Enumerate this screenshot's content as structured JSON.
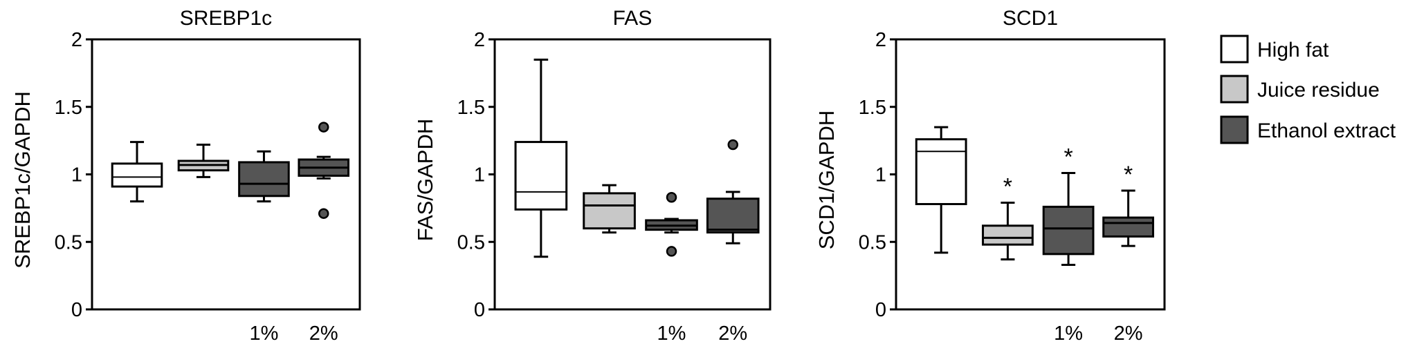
{
  "legend": [
    {
      "label": "High fat",
      "color": "#ffffff"
    },
    {
      "label": "Juice residue",
      "color": "#c8c8c8"
    },
    {
      "label": "Ethanol extract",
      "color": "#555555"
    }
  ],
  "dose_labels": [
    "",
    "",
    "1%",
    "2%"
  ],
  "chart_data": [
    {
      "type": "box",
      "title": "SREBP1c",
      "ylabel": "SREBP1c/GAPDH",
      "ylim": [
        0,
        2
      ],
      "yticks": [
        0,
        0.5,
        1,
        1.5,
        2
      ],
      "ytick_labels": [
        "0",
        "0.5",
        "1",
        "1.5",
        "2"
      ],
      "categories": [
        "High fat",
        "Juice residue",
        "Ethanol extract 1%",
        "Ethanol extract 2%"
      ],
      "boxes": [
        {
          "group": "High fat",
          "min": 0.8,
          "q1": 0.91,
          "median": 0.98,
          "q3": 1.08,
          "max": 1.24,
          "outliers": [],
          "significant": false
        },
        {
          "group": "Juice residue",
          "min": 0.98,
          "q1": 1.03,
          "median": 1.07,
          "q3": 1.1,
          "max": 1.22,
          "outliers": [],
          "significant": false
        },
        {
          "group": "Ethanol extract",
          "min": 0.8,
          "q1": 0.84,
          "median": 0.93,
          "q3": 1.09,
          "max": 1.17,
          "outliers": [],
          "significant": false
        },
        {
          "group": "Ethanol extract",
          "min": 0.97,
          "q1": 0.99,
          "median": 1.05,
          "q3": 1.11,
          "max": 1.13,
          "outliers": [
            1.35,
            0.71
          ],
          "significant": false
        }
      ]
    },
    {
      "type": "box",
      "title": "FAS",
      "ylabel": "FAS/GAPDH",
      "ylim": [
        0,
        2
      ],
      "yticks": [
        0,
        0.5,
        1,
        1.5,
        2
      ],
      "ytick_labels": [
        "0",
        "0.5",
        "1",
        "1.5",
        "2"
      ],
      "categories": [
        "High fat",
        "Juice residue",
        "Ethanol extract 1%",
        "Ethanol extract 2%"
      ],
      "boxes": [
        {
          "group": "High fat",
          "min": 0.39,
          "q1": 0.74,
          "median": 0.87,
          "q3": 1.24,
          "max": 1.85,
          "outliers": [],
          "significant": false
        },
        {
          "group": "Juice residue",
          "min": 0.57,
          "q1": 0.6,
          "median": 0.77,
          "q3": 0.86,
          "max": 0.92,
          "outliers": [],
          "significant": false
        },
        {
          "group": "Ethanol extract",
          "min": 0.57,
          "q1": 0.59,
          "median": 0.62,
          "q3": 0.66,
          "max": 0.67,
          "outliers": [
            0.83,
            0.43
          ],
          "significant": false
        },
        {
          "group": "Ethanol extract",
          "min": 0.49,
          "q1": 0.57,
          "median": 0.59,
          "q3": 0.82,
          "max": 0.87,
          "outliers": [
            1.22
          ],
          "significant": false
        }
      ]
    },
    {
      "type": "box",
      "title": "SCD1",
      "ylabel": "SCD1/GAPDH",
      "ylim": [
        0,
        2
      ],
      "yticks": [
        0,
        0.5,
        1,
        1.5,
        2
      ],
      "ytick_labels": [
        "0",
        "0.5",
        "1",
        "1.5",
        "2"
      ],
      "categories": [
        "High fat",
        "Juice residue",
        "Ethanol extract 1%",
        "Ethanol extract 2%"
      ],
      "boxes": [
        {
          "group": "High fat",
          "min": 0.42,
          "q1": 0.78,
          "median": 1.17,
          "q3": 1.26,
          "max": 1.35,
          "outliers": [],
          "significant": false
        },
        {
          "group": "Juice residue",
          "min": 0.37,
          "q1": 0.48,
          "median": 0.53,
          "q3": 0.62,
          "max": 0.79,
          "outliers": [],
          "significant": true
        },
        {
          "group": "Ethanol extract",
          "min": 0.33,
          "q1": 0.41,
          "median": 0.6,
          "q3": 0.76,
          "max": 1.01,
          "outliers": [],
          "significant": true
        },
        {
          "group": "Ethanol extract",
          "min": 0.47,
          "q1": 0.54,
          "median": 0.64,
          "q3": 0.68,
          "max": 0.88,
          "outliers": [],
          "significant": true
        }
      ]
    }
  ],
  "significance_marker": "*"
}
